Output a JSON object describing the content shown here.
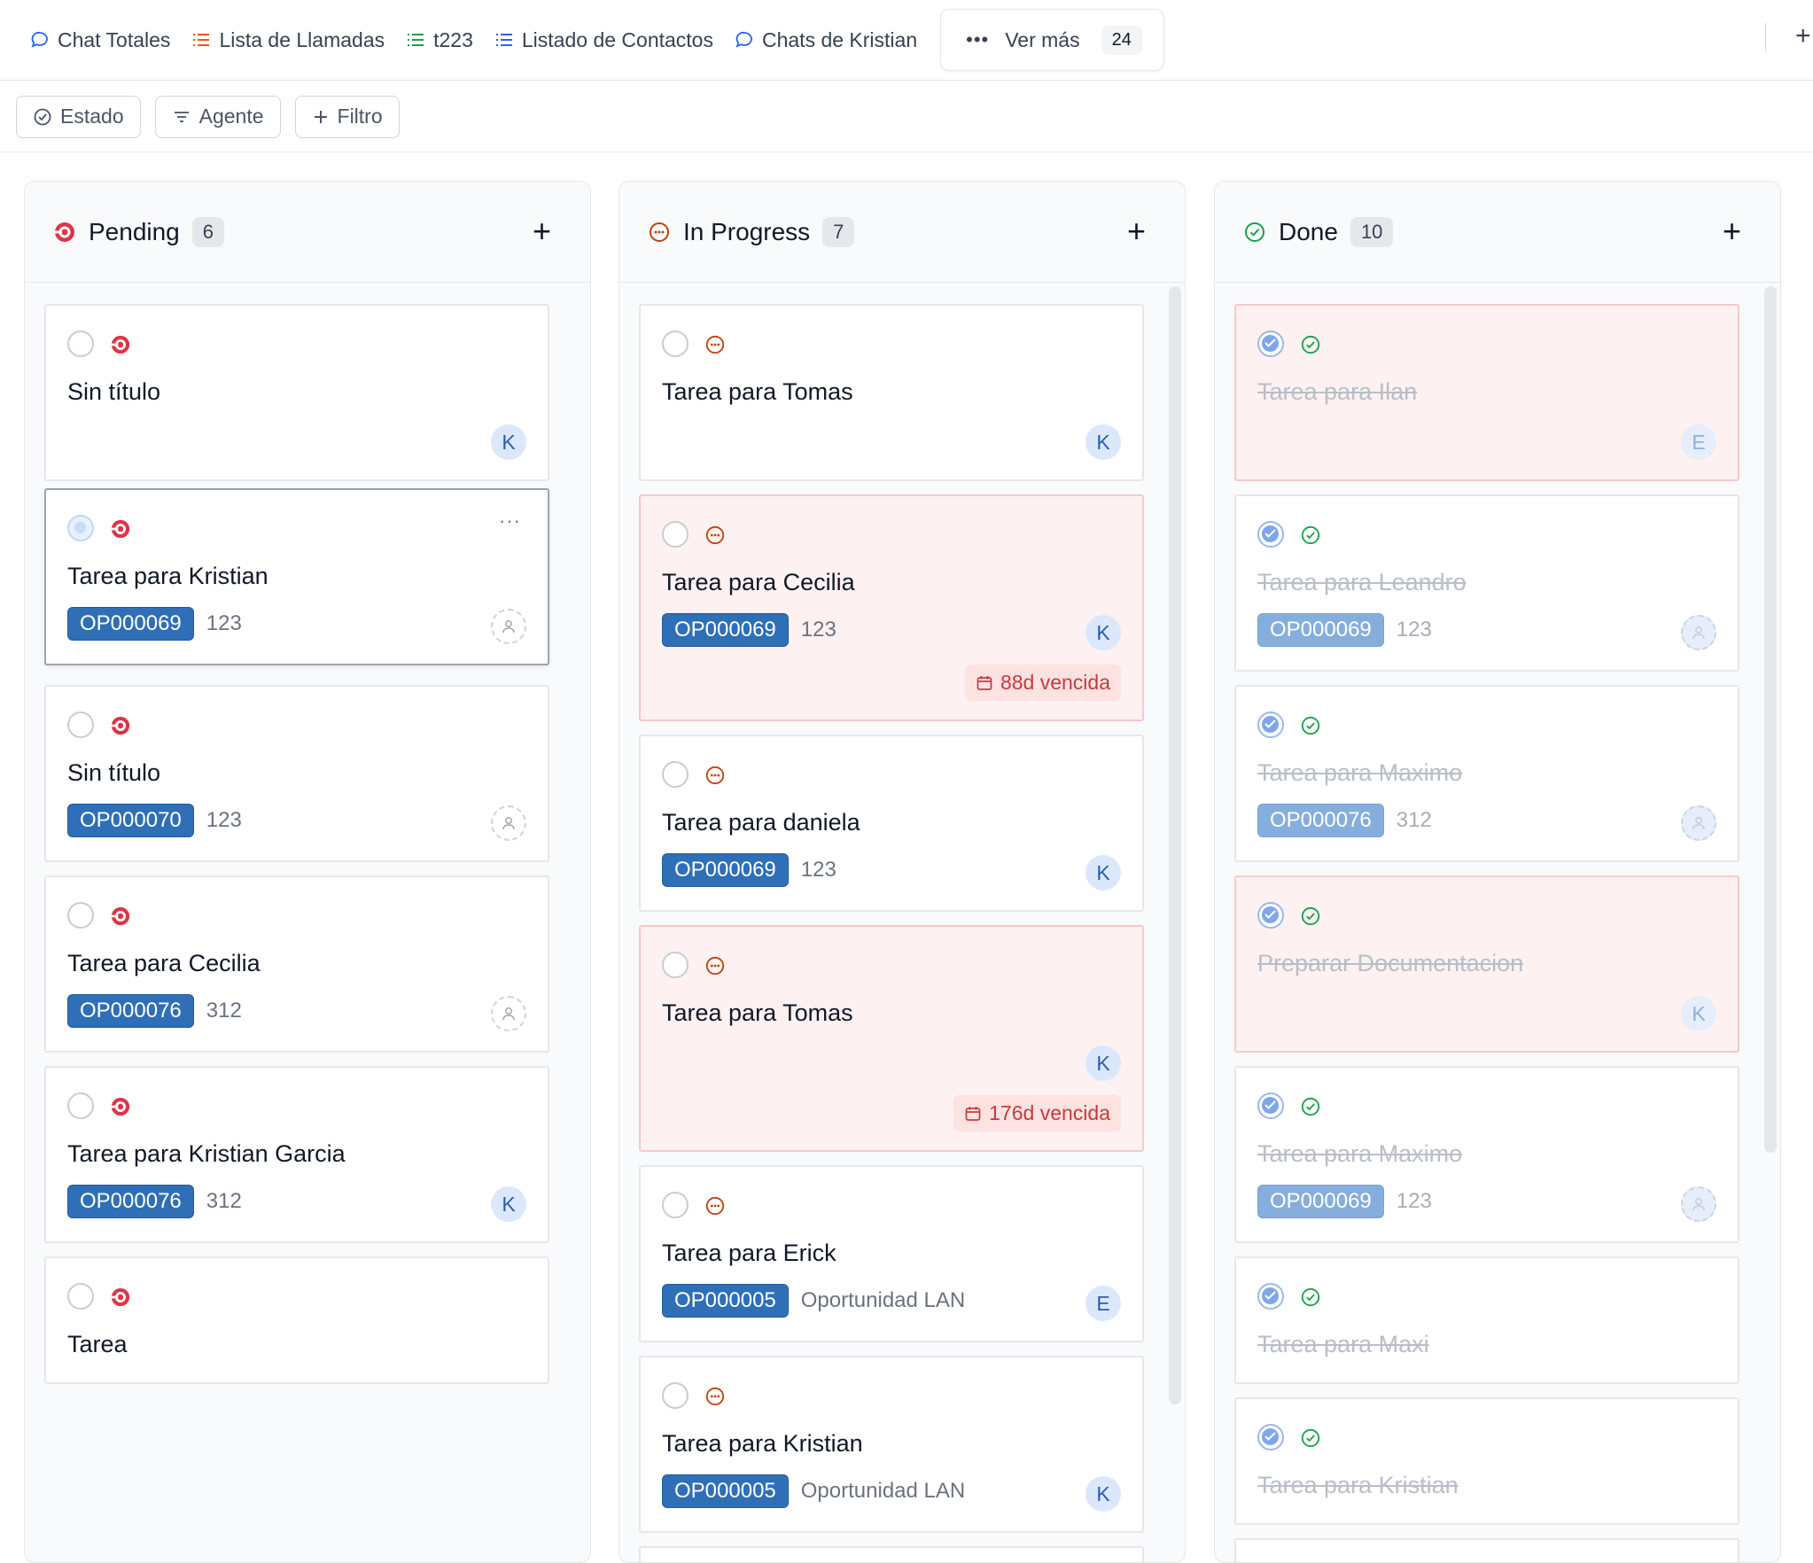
{
  "tabs": [
    {
      "label": "Chat Totales",
      "icon": "chat-bubble-icon"
    },
    {
      "label": "Lista de Llamadas",
      "icon": "list-icon"
    },
    {
      "label": "t223",
      "icon": "list-icon"
    },
    {
      "label": "Listado de Contactos",
      "icon": "list-icon"
    },
    {
      "label": "Chats de Kristian",
      "icon": "chat-bubble-icon"
    }
  ],
  "ver_mas": {
    "label": "Ver más",
    "count": "24"
  },
  "filters": [
    {
      "label": "Estado",
      "icon": "check-circle-icon"
    },
    {
      "label": "Agente",
      "icon": "filter-lines-icon"
    },
    {
      "label": "Filtro",
      "icon": "plus-icon"
    }
  ],
  "colors": {
    "pending": "#dc3545",
    "in_progress": "#c2410c",
    "done": "#16a34a",
    "badge": "#2f6fb7"
  },
  "columns": [
    {
      "title": "Pending",
      "count": "6",
      "cards": [
        {
          "title": "Sin título",
          "avatar": "K"
        },
        {
          "title": "Tarea para Kristian",
          "badge": "OP000069",
          "meta": "123",
          "avatar": "",
          "more": "···"
        },
        {
          "title": "Sin título",
          "badge": "OP000070",
          "meta": "123",
          "avatar": ""
        },
        {
          "title": "Tarea para Cecilia",
          "badge": "OP000076",
          "meta": "312",
          "avatar": ""
        },
        {
          "title": "Tarea para Kristian Garcia",
          "badge": "OP000076",
          "meta": "312",
          "avatar": "K"
        },
        {
          "title": "Tarea"
        }
      ]
    },
    {
      "title": "In Progress",
      "count": "7",
      "cards": [
        {
          "title": "Tarea para Tomas",
          "avatar": "K"
        },
        {
          "title": "Tarea para Cecilia",
          "badge": "OP000069",
          "meta": "123",
          "avatar": "K",
          "overdue": "88d vencida"
        },
        {
          "title": "Tarea para daniela",
          "badge": "OP000069",
          "meta": "123",
          "avatar": "K"
        },
        {
          "title": "Tarea para Tomas",
          "avatar": "K",
          "overdue": "176d vencida"
        },
        {
          "title": "Tarea para Erick",
          "badge": "OP000005",
          "meta": "Oportunidad LAN",
          "avatar": "E"
        },
        {
          "title": "Tarea para Kristian",
          "badge": "OP000005",
          "meta": "Oportunidad LAN",
          "avatar": "K"
        }
      ]
    },
    {
      "title": "Done",
      "count": "10",
      "cards": [
        {
          "title": "Tarea para Ilan",
          "avatar": "E"
        },
        {
          "title": "Tarea para Leandro",
          "badge": "OP000069",
          "meta": "123",
          "avatar": ""
        },
        {
          "title": "Tarea para Maximo",
          "badge": "OP000076",
          "meta": "312",
          "avatar": ""
        },
        {
          "title": "Preparar Documentacion",
          "avatar": "K"
        },
        {
          "title": "Tarea para Maximo",
          "badge": "OP000069",
          "meta": "123",
          "avatar": ""
        },
        {
          "title": "Tarea para Maxi"
        },
        {
          "title": "Tarea para Kristian"
        }
      ]
    }
  ]
}
